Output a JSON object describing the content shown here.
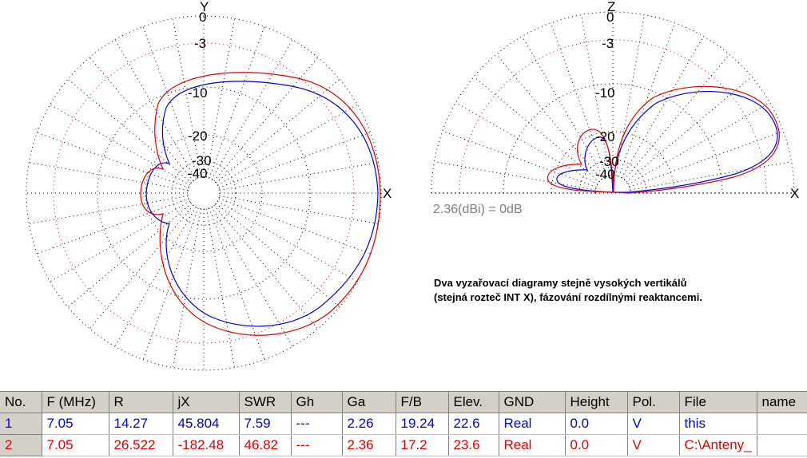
{
  "plots": {
    "azimuth": {
      "axis_top": "Y",
      "axis_right": "X",
      "ring_labels": [
        "0",
        "-3",
        "-10",
        "-20",
        "-30",
        "-40"
      ]
    },
    "elevation": {
      "axis_top": "Z",
      "axis_right": "X",
      "ring_labels": [
        "0",
        "-3",
        "-10",
        "-20",
        "-30",
        "-40"
      ]
    }
  },
  "reference_text": "2.36(dBi) = 0dB",
  "note_lines": [
    "Dva vyzařovací diagramy stejně vysokých vertikálů",
    "(stejná rozteč INT X), fázování rozdílnými reaktancemi."
  ],
  "table": {
    "headers": [
      "No.",
      "F (MHz)",
      "R",
      "jX",
      "SWR",
      "Gh",
      "Ga",
      "F/B",
      "Elev.",
      "GND",
      "Height",
      "Pol.",
      "File",
      "name"
    ],
    "rows": [
      [
        "1",
        "7.05",
        "14.27",
        "45.804",
        "7.59",
        "---",
        "2.26",
        "19.24",
        "22.6",
        "Real",
        "0.0",
        "V",
        "this",
        ""
      ],
      [
        "2",
        "7.05",
        "26.522",
        "-182.48",
        "46.82",
        "---",
        "2.36",
        "17.2",
        "23.6",
        "Real",
        "0.0",
        "V",
        "C:\\Anteny_",
        ""
      ]
    ]
  },
  "colors": {
    "series1": "#0000e0",
    "series2": "#e00000",
    "grid": "#000000",
    "ref_text": "#808080"
  }
}
